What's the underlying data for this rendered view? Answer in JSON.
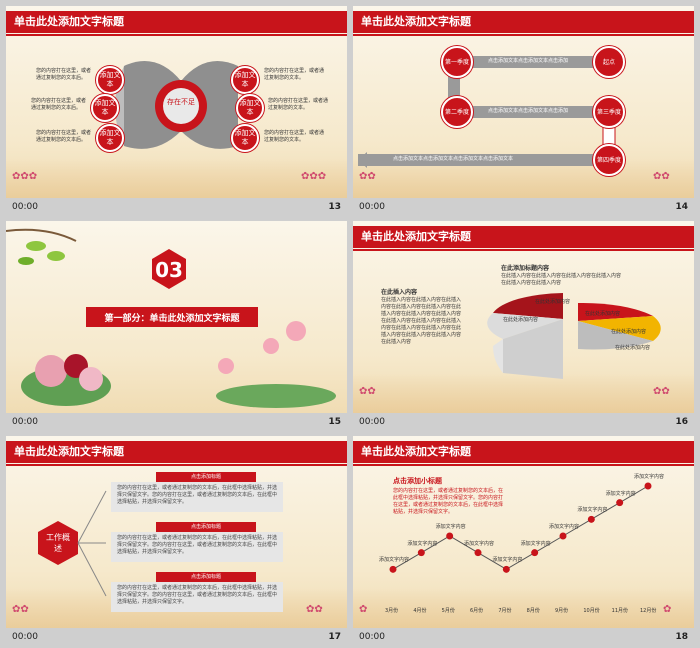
{
  "footer_time": "00:00",
  "s13": {
    "title": "单击此处添加文字标题",
    "num": "13",
    "center": "存在不足",
    "circle": "添加文本",
    "text": "您的内容打在这里，或者通过复制您的文本。",
    "left_texts": [
      "您的内容打在这里，或者通过复制您的文本后。",
      "您的内容打在这里，或者通过复制您的文本后。",
      "您的内容打在这里，或者通过复制您的文本后。"
    ]
  },
  "s14": {
    "title": "单击此处添加文字标题",
    "num": "14",
    "nodes": [
      "第一季度",
      "起点",
      "第二季度",
      "第三季度",
      "第四季度"
    ],
    "bars": [
      "点击添加文本点击添加文本点击添加",
      "点击添加文本点击添加文本点击添加",
      "点击添加文本点击添加文本点击添加文本点击添加文本"
    ]
  },
  "s15": {
    "num": "15",
    "big": "03",
    "title": "第一部分：单击此处添加文字标题"
  },
  "s16": {
    "title": "单击此处添加文字标题",
    "num": "16",
    "right_title": "在此添加标题内容",
    "right_text": "在此插入内容在此插入内容在此插入内容在此插入内容在此插入内容在此插入内容",
    "left_title": "在此插入内容",
    "left_text": "在此插入内容在此插入内容在此插入内容在此插入内容在此插入内容在此插入内容在此插入内容在此插入内容在此插入内容在此插入内容在此插入内容在此插入内容在此插入内容在此插入内容在此插入内容在此插入内容在此插入内容",
    "pie_labels": [
      "在此处添加内容",
      "在此处添加内容",
      "在此处添加内容",
      "在此处添加内容",
      "在此处添加内容"
    ]
  },
  "s17": {
    "title": "单击此处添加文字标题",
    "num": "17",
    "hex": "工作概述",
    "bars": [
      "点击添加标题",
      "点击添加标题",
      "点击添加标题"
    ],
    "text": "您的内容打在这里，或者通过复制您的文本后，在此框中选择粘贴，并选择只保留文字。您的内容打在这里，或者通过复制您的文本后，在此框中选择粘贴，并选择只保留文字。"
  },
  "s18": {
    "title": "单击此处添加文字标题",
    "num": "18",
    "sub": "点击添加小标题",
    "sub_text": "您的内容打在这里，或者通过复制您的文本后，在此框中选择粘贴，并选择只保留文字。您的内容打在这里，或者通过复制您的文本后，在此框中选择粘贴，并选择只保留文字。",
    "label": "添加文字内容",
    "chart_data": {
      "type": "line",
      "x": [
        "3月份",
        "4月份",
        "5月份",
        "6月份",
        "7月份",
        "8月份",
        "9月份",
        "10月份",
        "11月份",
        "12月份"
      ],
      "values": [
        1,
        2,
        3,
        2,
        1,
        2,
        3,
        4,
        5,
        6
      ],
      "series": [
        {
          "values": [
            1,
            2,
            3,
            2,
            1,
            2,
            3,
            4,
            5,
            6
          ]
        }
      ]
    }
  }
}
